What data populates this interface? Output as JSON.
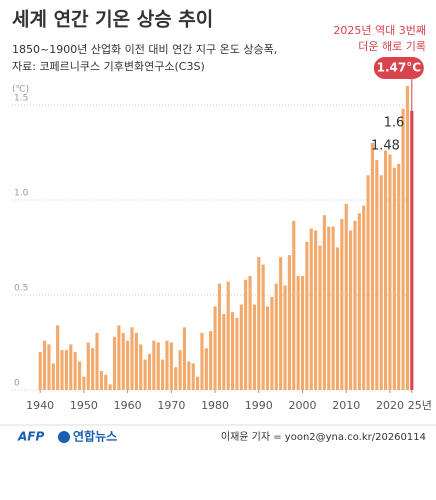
{
  "chart_data": {
    "type": "bar",
    "title": "세계 연간 기온 상승 추이",
    "subtitle": [
      "1850~1900년 산업화 이전 대비 연간 지구 온도 상승폭,",
      "자료: 코페르니쿠스 기후변화연구소(C3S)"
    ],
    "annotation": [
      "2025년 역대 3번째",
      "더운 해로 기록"
    ],
    "y_unit": "(℃)",
    "x": [
      1940,
      1941,
      1942,
      1943,
      1944,
      1945,
      1946,
      1947,
      1948,
      1949,
      1950,
      1951,
      1952,
      1953,
      1954,
      1955,
      1956,
      1957,
      1958,
      1959,
      1960,
      1961,
      1962,
      1963,
      1964,
      1965,
      1966,
      1967,
      1968,
      1969,
      1970,
      1971,
      1972,
      1973,
      1974,
      1975,
      1976,
      1977,
      1978,
      1979,
      1980,
      1981,
      1982,
      1983,
      1984,
      1985,
      1986,
      1987,
      1988,
      1989,
      1990,
      1991,
      1992,
      1993,
      1994,
      1995,
      1996,
      1997,
      1998,
      1999,
      2000,
      2001,
      2002,
      2003,
      2004,
      2005,
      2006,
      2007,
      2008,
      2009,
      2010,
      2011,
      2012,
      2013,
      2014,
      2015,
      2016,
      2017,
      2018,
      2019,
      2020,
      2021,
      2022,
      2023,
      2024,
      2025
    ],
    "values": [
      0.2,
      0.26,
      0.24,
      0.14,
      0.34,
      0.21,
      0.21,
      0.24,
      0.2,
      0.15,
      0.07,
      0.25,
      0.22,
      0.3,
      0.1,
      0.08,
      0.03,
      0.28,
      0.34,
      0.3,
      0.26,
      0.33,
      0.3,
      0.24,
      0.16,
      0.19,
      0.26,
      0.25,
      0.16,
      0.26,
      0.25,
      0.12,
      0.21,
      0.33,
      0.15,
      0.14,
      0.07,
      0.3,
      0.22,
      0.31,
      0.44,
      0.56,
      0.4,
      0.57,
      0.41,
      0.38,
      0.45,
      0.58,
      0.6,
      0.45,
      0.7,
      0.66,
      0.44,
      0.49,
      0.56,
      0.7,
      0.55,
      0.71,
      0.89,
      0.6,
      0.6,
      0.78,
      0.85,
      0.84,
      0.76,
      0.92,
      0.86,
      0.86,
      0.75,
      0.9,
      0.98,
      0.84,
      0.89,
      0.93,
      0.97,
      1.13,
      1.3,
      1.21,
      1.13,
      1.26,
      1.24,
      1.17,
      1.19,
      1.48,
      1.6,
      1.47
    ],
    "value_labels": [
      null,
      null,
      null,
      null,
      null,
      null,
      null,
      null,
      null,
      null,
      null,
      null,
      null,
      null,
      null,
      null,
      null,
      null,
      null,
      null,
      null,
      null,
      null,
      null,
      null,
      null,
      null,
      null,
      null,
      null,
      null,
      null,
      null,
      null,
      null,
      null,
      null,
      null,
      null,
      null,
      null,
      null,
      null,
      null,
      null,
      null,
      null,
      null,
      null,
      null,
      null,
      null,
      null,
      null,
      null,
      null,
      null,
      null,
      null,
      null,
      null,
      null,
      null,
      null,
      null,
      null,
      null,
      null,
      null,
      null,
      null,
      null,
      null,
      null,
      null,
      null,
      null,
      null,
      null,
      null,
      null,
      null,
      null,
      "1.48",
      "1.6",
      "1.47°C"
    ],
    "color": "#f2a96b",
    "highlight_color": "#d9434b",
    "xlim": [
      1939.5,
      2025.5
    ],
    "xticks": [
      1940,
      1950,
      1960,
      1970,
      1980,
      1990,
      2000,
      2010,
      2020,
      {
        "value": 2025,
        "label": "25년"
      }
    ],
    "ylim": [
      0,
      1.6
    ],
    "yticks": [
      0,
      0.5,
      {
        "value": 1.0,
        "label": "1.0"
      },
      1.5
    ],
    "grid": true
  },
  "footer": {
    "sources": [
      "AFP",
      "연합뉴스"
    ],
    "credit": "이재윤 기자 = yoon2@yna.co.kr/20260114"
  }
}
